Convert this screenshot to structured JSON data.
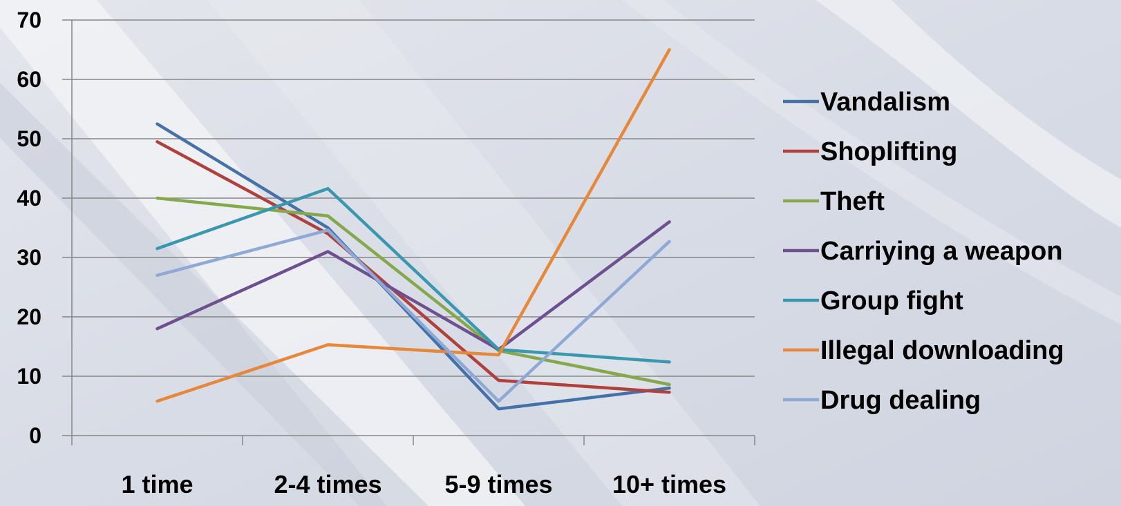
{
  "chart_data": {
    "type": "line",
    "title": "",
    "xlabel": "",
    "ylabel": "",
    "categories": [
      "1 time",
      "2-4 times",
      "5-9 times",
      "10+ times"
    ],
    "ylim": [
      0,
      70
    ],
    "yticks": [
      0,
      10,
      20,
      30,
      40,
      50,
      60,
      70
    ],
    "grid": true,
    "legend_position": "right",
    "series": [
      {
        "name": "Vandalism",
        "color": "#4472a8",
        "values": [
          52.5,
          35,
          4.5,
          8
        ]
      },
      {
        "name": "Shoplifting",
        "color": "#b0403c",
        "values": [
          49.5,
          34,
          9.3,
          7.3
        ]
      },
      {
        "name": "Theft",
        "color": "#84a84a",
        "values": [
          40,
          37,
          14.3,
          8.6
        ]
      },
      {
        "name": "Carriying a weapon",
        "color": "#6e5090",
        "values": [
          18,
          31,
          14.5,
          36
        ]
      },
      {
        "name": "Group fight",
        "color": "#3a97b0",
        "values": [
          31.5,
          41.6,
          14.5,
          12.4
        ]
      },
      {
        "name": "Illegal downloading",
        "color": "#e5883a",
        "values": [
          5.8,
          15.3,
          13.6,
          65
        ]
      },
      {
        "name": "Drug dealing",
        "color": "#8ea9d6",
        "values": [
          27,
          34.6,
          5.8,
          32.7
        ]
      }
    ]
  }
}
